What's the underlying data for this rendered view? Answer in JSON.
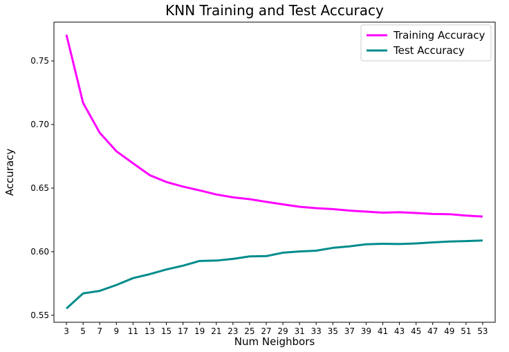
{
  "chart_data": {
    "type": "line",
    "title": "KNN Training and Test Accuracy",
    "xlabel": "Num Neighbors",
    "ylabel": "Accuracy",
    "x": [
      3,
      5,
      7,
      9,
      11,
      13,
      15,
      17,
      19,
      21,
      23,
      25,
      27,
      29,
      31,
      33,
      35,
      37,
      39,
      41,
      43,
      45,
      47,
      49,
      51,
      53
    ],
    "xlim": [
      1.5,
      54.5
    ],
    "ylim": [
      0.5445,
      0.7805
    ],
    "yticks": [
      0.55,
      0.6,
      0.65,
      0.7,
      0.75
    ],
    "legend": "top-right",
    "grid": false,
    "series": [
      {
        "name": "Training Accuracy",
        "color": "#ff00ff",
        "values": [
          0.7705,
          0.717,
          0.6935,
          0.679,
          0.6695,
          0.6602,
          0.6548,
          0.6512,
          0.6482,
          0.645,
          0.6427,
          0.6413,
          0.6392,
          0.6372,
          0.6353,
          0.6342,
          0.6335,
          0.6323,
          0.6315,
          0.6307,
          0.631,
          0.6304,
          0.6297,
          0.6295,
          0.6284,
          0.6276
        ]
      },
      {
        "name": "Test Accuracy",
        "color": "#008b8b",
        "values": [
          0.5553,
          0.5672,
          0.5692,
          0.5738,
          0.5792,
          0.5823,
          0.586,
          0.589,
          0.5927,
          0.593,
          0.5943,
          0.5963,
          0.5965,
          0.5992,
          0.6002,
          0.6008,
          0.603,
          0.6042,
          0.6058,
          0.6062,
          0.606,
          0.6065,
          0.6073,
          0.608,
          0.6083,
          0.6088
        ]
      }
    ]
  }
}
